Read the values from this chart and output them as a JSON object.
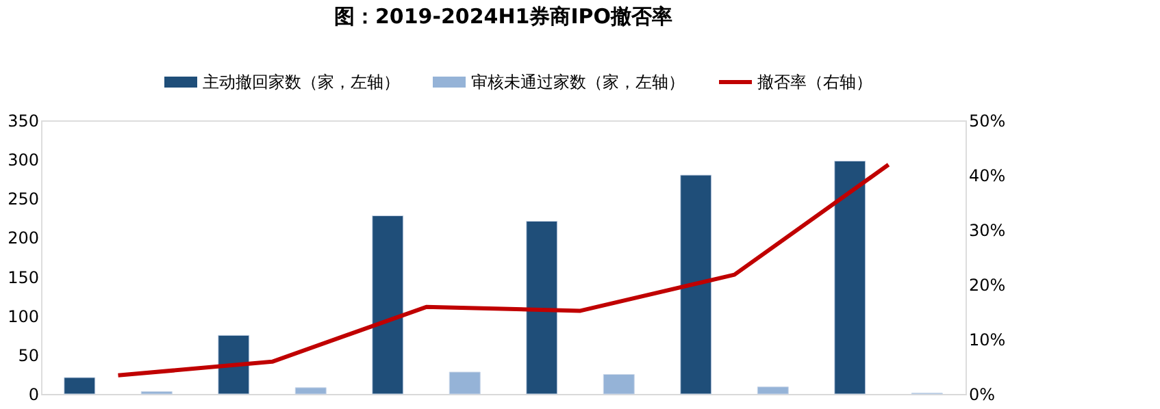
{
  "chart_data": {
    "type": "bar",
    "title": "图：2019-2024H1券商IPO撤否率",
    "categories": [
      null,
      null,
      null,
      null,
      null,
      null
    ],
    "series": [
      {
        "name": "主动撤回家数（家，左轴）",
        "color": "#1f4e79",
        "values": [
          21,
          75,
          228,
          221,
          280,
          298
        ]
      },
      {
        "name": "审核未通过家数（家，左轴）",
        "color": "#95b3d7",
        "values": [
          3,
          8,
          28,
          25,
          9,
          1
        ]
      },
      {
        "name": "撤否率（右轴）",
        "color": "#c00000",
        "type": "line",
        "axis": "y2",
        "values": [
          3.4,
          5.9,
          15.9,
          15.2,
          21.8,
          41.9
        ]
      }
    ],
    "ylim": [
      0,
      350
    ],
    "yticks": [
      0,
      50,
      100,
      150,
      200,
      250,
      300,
      350
    ],
    "y2lim": [
      0,
      50
    ],
    "y2ticks": [
      {
        "value": 0,
        "label": "0%"
      },
      {
        "value": 10,
        "label": "10%"
      },
      {
        "value": 20,
        "label": "20%"
      },
      {
        "value": 30,
        "label": "30%"
      },
      {
        "value": 40,
        "label": "40%"
      },
      {
        "value": 50,
        "label": "50%"
      }
    ],
    "tick_labels": "y",
    "grid": false,
    "legend": "top",
    "marker": "none",
    "line_style": "solid"
  }
}
